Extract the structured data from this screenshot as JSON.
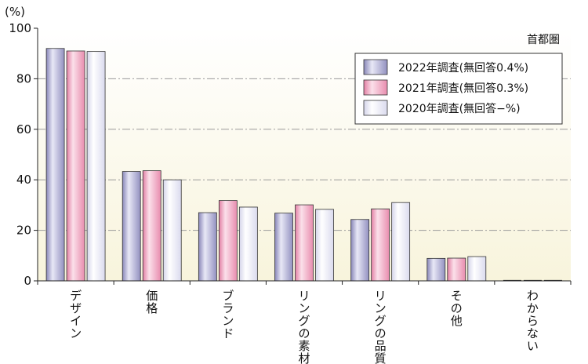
{
  "chart_data": {
    "type": "bar",
    "unit_label": "(%)",
    "region_label": "首都圏",
    "ylim": [
      0,
      100
    ],
    "yticks": [
      0,
      20,
      40,
      60,
      80,
      100
    ],
    "grid": true,
    "legend_position": "top-right",
    "categories": [
      "デザイン",
      "価格",
      "ブランド",
      "リングの素材",
      "リングの品質",
      "その他",
      "わからない"
    ],
    "series": [
      {
        "name": "2022年調査(無回答0.4%)",
        "color": "#9a98c4",
        "values": [
          92.0,
          43.3,
          27.0,
          26.8,
          24.3,
          8.9,
          0.0
        ]
      },
      {
        "name": "2021年調査(無回答0.3%)",
        "color": "#ec9ab6",
        "values": [
          91.0,
          43.6,
          31.8,
          30.1,
          28.5,
          9.0,
          0.0
        ]
      },
      {
        "name": "2020年調査(無回答−%)",
        "color": "#e0e0f0",
        "values": [
          90.8,
          40.0,
          29.2,
          28.3,
          31.0,
          9.6,
          0.0
        ]
      }
    ]
  }
}
